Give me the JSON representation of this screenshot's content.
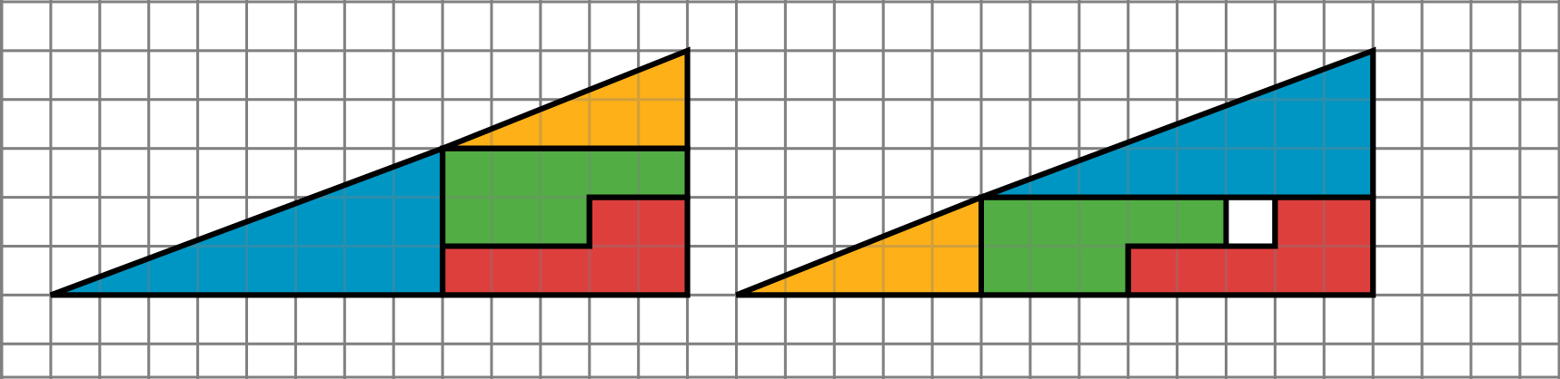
{
  "colors": {
    "grid": "#808080",
    "outline": "#000000",
    "blue": "#0096C3",
    "orange": "#FDB018",
    "green": "#52AD45",
    "red": "#DD3F3D",
    "empty": "#FFFFFF"
  },
  "figures": [
    {
      "name": "left-triangle",
      "pieces": [
        "blue-triangle",
        "orange-triangle",
        "green-l-piece",
        "red-l-piece"
      ]
    },
    {
      "name": "right-triangle",
      "pieces": [
        "orange-triangle",
        "blue-triangle",
        "green-l-piece",
        "red-l-piece",
        "empty-square"
      ]
    }
  ]
}
